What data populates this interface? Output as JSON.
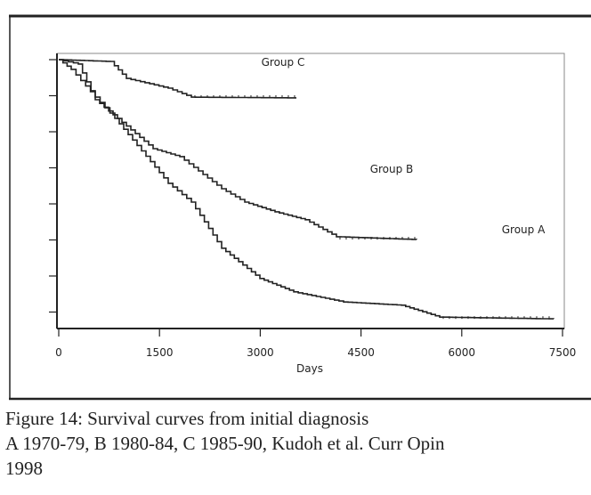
{
  "chart_data": {
    "type": "line",
    "title": "",
    "xlabel": "Days",
    "ylabel": "",
    "xlim": [
      0,
      7500
    ],
    "ylim": [
      0.25,
      1.0
    ],
    "x_ticks": [
      "0",
      "1500",
      "3000",
      "4500",
      "6000",
      "7500"
    ],
    "y_tick_count": 8,
    "y_tick_labels_visible": false,
    "grid": false,
    "legend": "inline labels",
    "series": [
      {
        "name": "Group A",
        "x": [
          0,
          186,
          543,
          835,
          1630,
          1974,
          2425,
          2995,
          3498,
          4240,
          5102,
          5671,
          7367
        ],
        "y": [
          1.0,
          0.973,
          0.896,
          0.837,
          0.657,
          0.605,
          0.477,
          0.393,
          0.356,
          0.328,
          0.319,
          0.286,
          0.281
        ]
      },
      {
        "name": "Group B",
        "x": [
          0,
          291,
          543,
          1405,
          1802,
          2425,
          2769,
          3220,
          3671,
          4134,
          5327
        ],
        "y": [
          1.0,
          0.988,
          0.889,
          0.753,
          0.731,
          0.642,
          0.605,
          0.578,
          0.556,
          0.509,
          0.501
        ]
      },
      {
        "name": "Group C",
        "x": [
          0,
          769,
          1007,
          1630,
          1974,
          3538
        ],
        "y": [
          1.0,
          0.995,
          0.948,
          0.921,
          0.896,
          0.894
        ]
      }
    ]
  },
  "caption": {
    "line1": "Figure 14: Survival curves from initial diagnosis",
    "line2": "A 1970-79, B 1980-84, C 1985-90, Kudoh et al. Curr Opin",
    "line3": "1998"
  },
  "colors": {
    "ink": "#222222",
    "paper": "#ffffff"
  }
}
